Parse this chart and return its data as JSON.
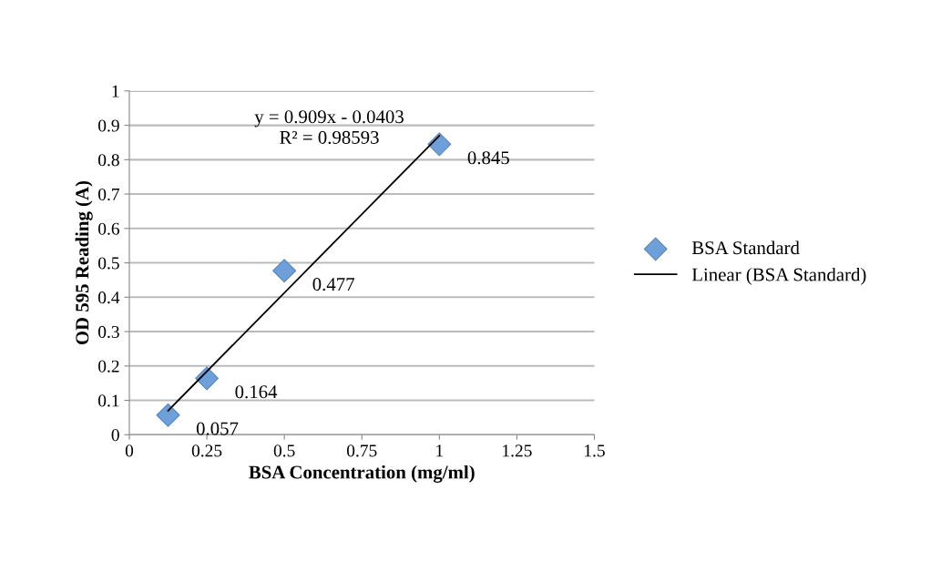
{
  "chart_data": {
    "type": "scatter",
    "xlabel": "BSA Concentration (mg/ml)",
    "ylabel": "OD 595 Reading (A)",
    "xlim": [
      0,
      1.5
    ],
    "xticks": [
      0,
      0.25,
      0.5,
      0.75,
      1,
      1.25,
      1.5
    ],
    "ylim": [
      0,
      1
    ],
    "yticks": [
      0,
      0.1,
      0.2,
      0.3,
      0.4,
      0.5,
      0.6,
      0.7,
      0.8,
      0.9,
      1
    ],
    "grid": "y",
    "legend": "right",
    "series": [
      {
        "name": "BSA Standard",
        "color": "#6f9fd8",
        "x": [
          0.125,
          0.25,
          0.5,
          1
        ],
        "values": [
          0.057,
          0.164,
          0.477,
          0.845
        ],
        "value_labels": [
          "0.057",
          "0.164",
          "0.477",
          "0.845"
        ],
        "marker": "diamond"
      },
      {
        "name": "Linear (BSA Standard)",
        "type": "line",
        "color": "#000000",
        "x": [
          0.125,
          1
        ],
        "values": [
          0.07,
          0.87
        ],
        "line_style": "solid"
      }
    ],
    "annotations": [
      "y = 0.909x - 0.0403",
      "R² = 0.98593"
    ]
  }
}
